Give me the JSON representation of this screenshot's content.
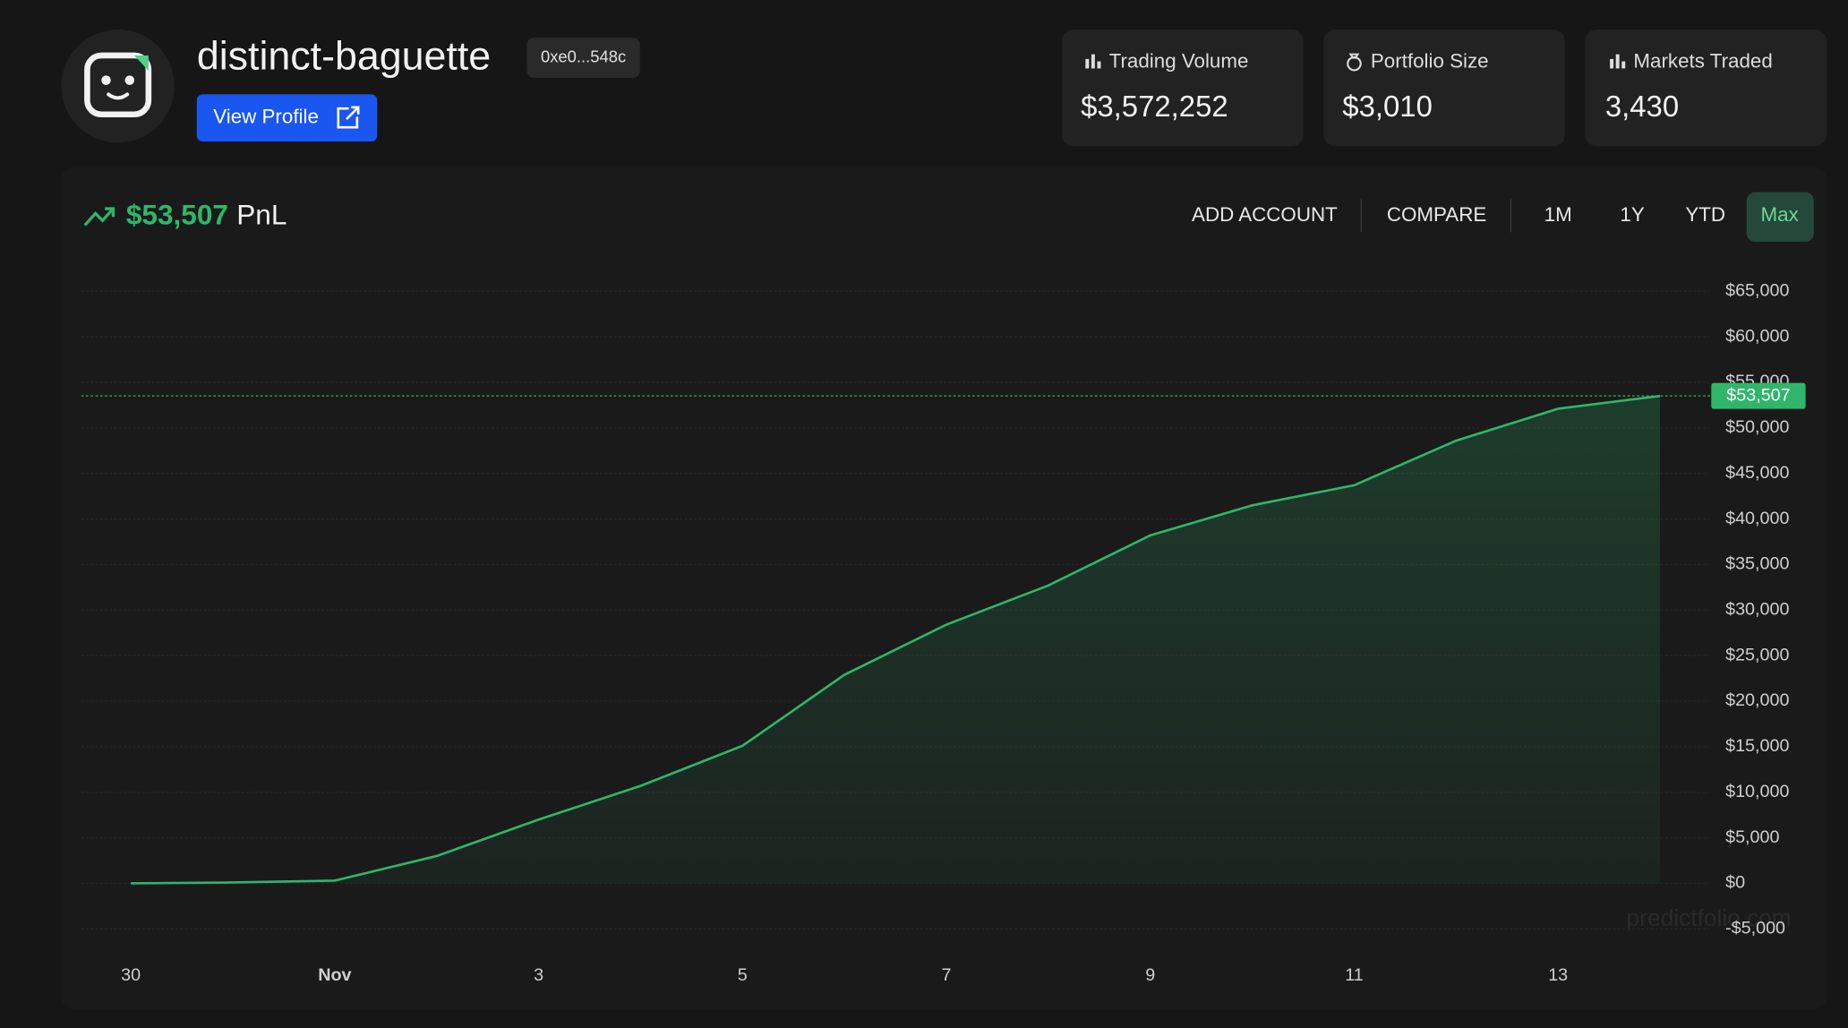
{
  "header": {
    "name": "distinct-baguette",
    "address": "0xe0...548c",
    "button": "View Profile"
  },
  "stats": [
    {
      "label": "Trading Volume",
      "value": "$3,572,252"
    },
    {
      "label": "Portfolio Size",
      "value": "$3,010"
    },
    {
      "label": "Markets Traded",
      "value": "3,430"
    }
  ],
  "toolbar": {
    "actions": [
      "ADD ACCOUNT",
      "COMPARE"
    ],
    "ranges": [
      "1M",
      "1Y",
      "YTD",
      "Max"
    ],
    "selected": "Max"
  },
  "watermark": "predictfolio.com",
  "chart_data": {
    "type": "area",
    "pnl_label": "PnL",
    "categories": [
      "30",
      null,
      "Nov",
      null,
      "3",
      null,
      "5",
      null,
      "7",
      null,
      "9",
      null,
      "11",
      null,
      "13",
      null
    ],
    "values": [
      0,
      100,
      300,
      3000,
      7000,
      10700,
      15100,
      22900,
      28400,
      32700,
      38200,
      41500,
      43700,
      48600,
      52100,
      53507
    ],
    "color": "#2fb66a",
    "ylim": [
      -5000,
      65000
    ],
    "yticks": [
      {
        "value": -5000,
        "label": "-$5,000"
      },
      {
        "value": 0,
        "label": "$0"
      },
      {
        "value": 5000,
        "label": "$5,000"
      },
      {
        "value": 10000,
        "label": "$10,000"
      },
      {
        "value": 15000,
        "label": "$15,000"
      },
      {
        "value": 20000,
        "label": "$20,000"
      },
      {
        "value": 25000,
        "label": "$25,000"
      },
      {
        "value": 30000,
        "label": "$30,000"
      },
      {
        "value": 35000,
        "label": "$35,000"
      },
      {
        "value": 40000,
        "label": "$40,000"
      },
      {
        "value": 45000,
        "label": "$45,000"
      },
      {
        "value": 50000,
        "label": "$50,000"
      },
      {
        "value": 55000,
        "label": "$55,000"
      },
      {
        "value": 60000,
        "label": "$60,000"
      },
      {
        "value": 65000,
        "label": "$65,000"
      }
    ],
    "grid": true,
    "annotation": {
      "value": 53507,
      "label": "$53,507"
    }
  }
}
